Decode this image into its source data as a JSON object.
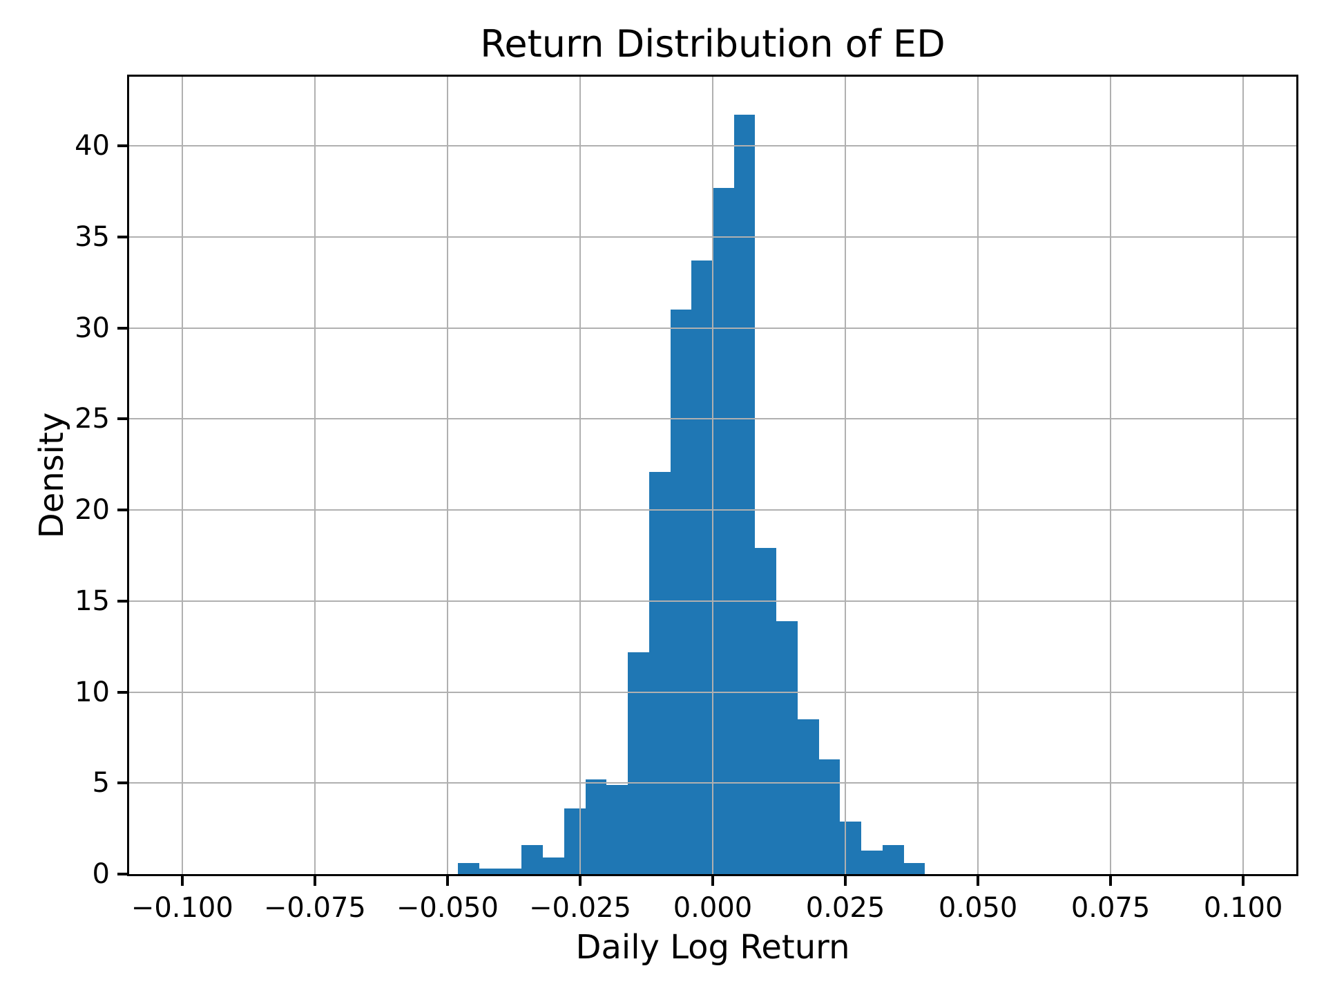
{
  "chart_data": {
    "type": "bar",
    "subtype": "histogram-density",
    "title": "Return Distribution of ED",
    "xlabel": "Daily Log Return",
    "ylabel": "Density",
    "bin_start": -0.048,
    "bin_width": 0.004,
    "bin_edges": [
      -0.048,
      -0.044,
      -0.04,
      -0.036,
      -0.032,
      -0.028,
      -0.024,
      -0.02,
      -0.016,
      -0.012,
      -0.008,
      -0.004,
      0.0,
      0.004,
      0.008,
      0.012,
      0.016,
      0.02,
      0.024,
      0.028,
      0.032,
      0.036,
      0.04
    ],
    "values": [
      0.6,
      0.3,
      0.3,
      1.6,
      0.9,
      3.6,
      5.2,
      4.9,
      12.2,
      22.1,
      31.0,
      33.7,
      37.7,
      41.7,
      17.9,
      13.9,
      8.5,
      6.3,
      2.9,
      1.3,
      1.6,
      0.6
    ],
    "xlim": [
      -0.11,
      0.11
    ],
    "ylim": [
      0,
      43.8
    ],
    "x_ticks": [
      {
        "value": -0.1,
        "label": "−0.100"
      },
      {
        "value": -0.075,
        "label": "−0.075"
      },
      {
        "value": -0.05,
        "label": "−0.050"
      },
      {
        "value": -0.025,
        "label": "−0.025"
      },
      {
        "value": 0.0,
        "label": "0.000"
      },
      {
        "value": 0.025,
        "label": "0.025"
      },
      {
        "value": 0.05,
        "label": "0.050"
      },
      {
        "value": 0.075,
        "label": "0.075"
      },
      {
        "value": 0.1,
        "label": "0.100"
      }
    ],
    "y_ticks": [
      0,
      5,
      10,
      15,
      20,
      25,
      30,
      35,
      40
    ],
    "grid": true,
    "grid_above_bars": true,
    "legend": null,
    "bar_color": "#1f77b4",
    "grid_color": "#b0b0b0",
    "axis_color": "#000000",
    "background_color": "#ffffff"
  }
}
